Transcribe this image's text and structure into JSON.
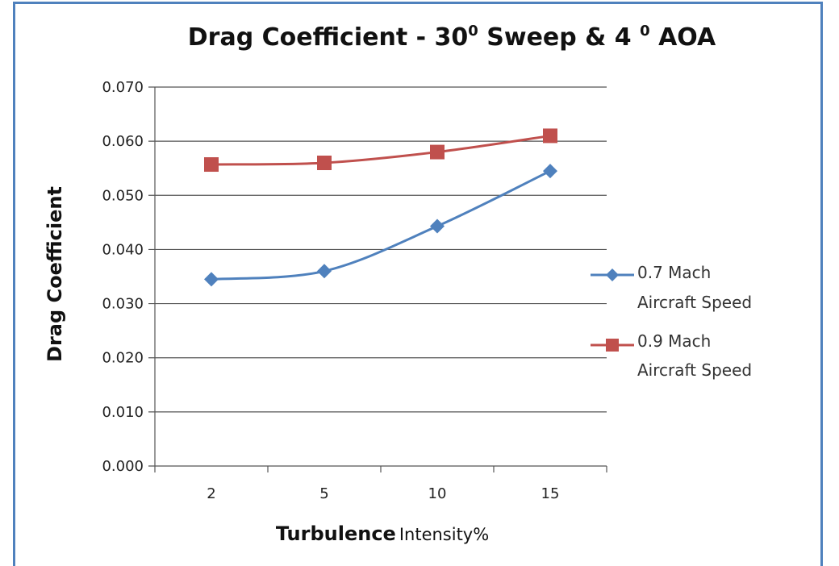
{
  "chart_data": {
    "type": "line",
    "title": {
      "part1": "Drag Coefficient - 30",
      "sup1": "0",
      "part2": " Sweep & 4 ",
      "sup2": "0",
      "part3": " AOA"
    },
    "xlabel": {
      "bold": "Turbulence",
      "normal": "Intensity%"
    },
    "ylabel": "Drag Coefficient",
    "categories": [
      "2",
      "5",
      "10",
      "15"
    ],
    "yticks": [
      "0.000",
      "0.010",
      "0.020",
      "0.030",
      "0.040",
      "0.050",
      "0.060",
      "0.070"
    ],
    "ylim": [
      0,
      0.07
    ],
    "grid": true,
    "legend_position": "right",
    "series": [
      {
        "name_line1": "0.7 Mach",
        "name_line2": "Aircraft Speed",
        "values": [
          0.0345,
          0.036,
          0.0443,
          0.0545
        ],
        "color": "#4f81bd",
        "marker": "diamond"
      },
      {
        "name_line1": "0.9 Mach",
        "name_line2": "Aircraft Speed",
        "values": [
          0.0557,
          0.056,
          0.058,
          0.061
        ],
        "color": "#c0504d",
        "marker": "square"
      }
    ]
  }
}
